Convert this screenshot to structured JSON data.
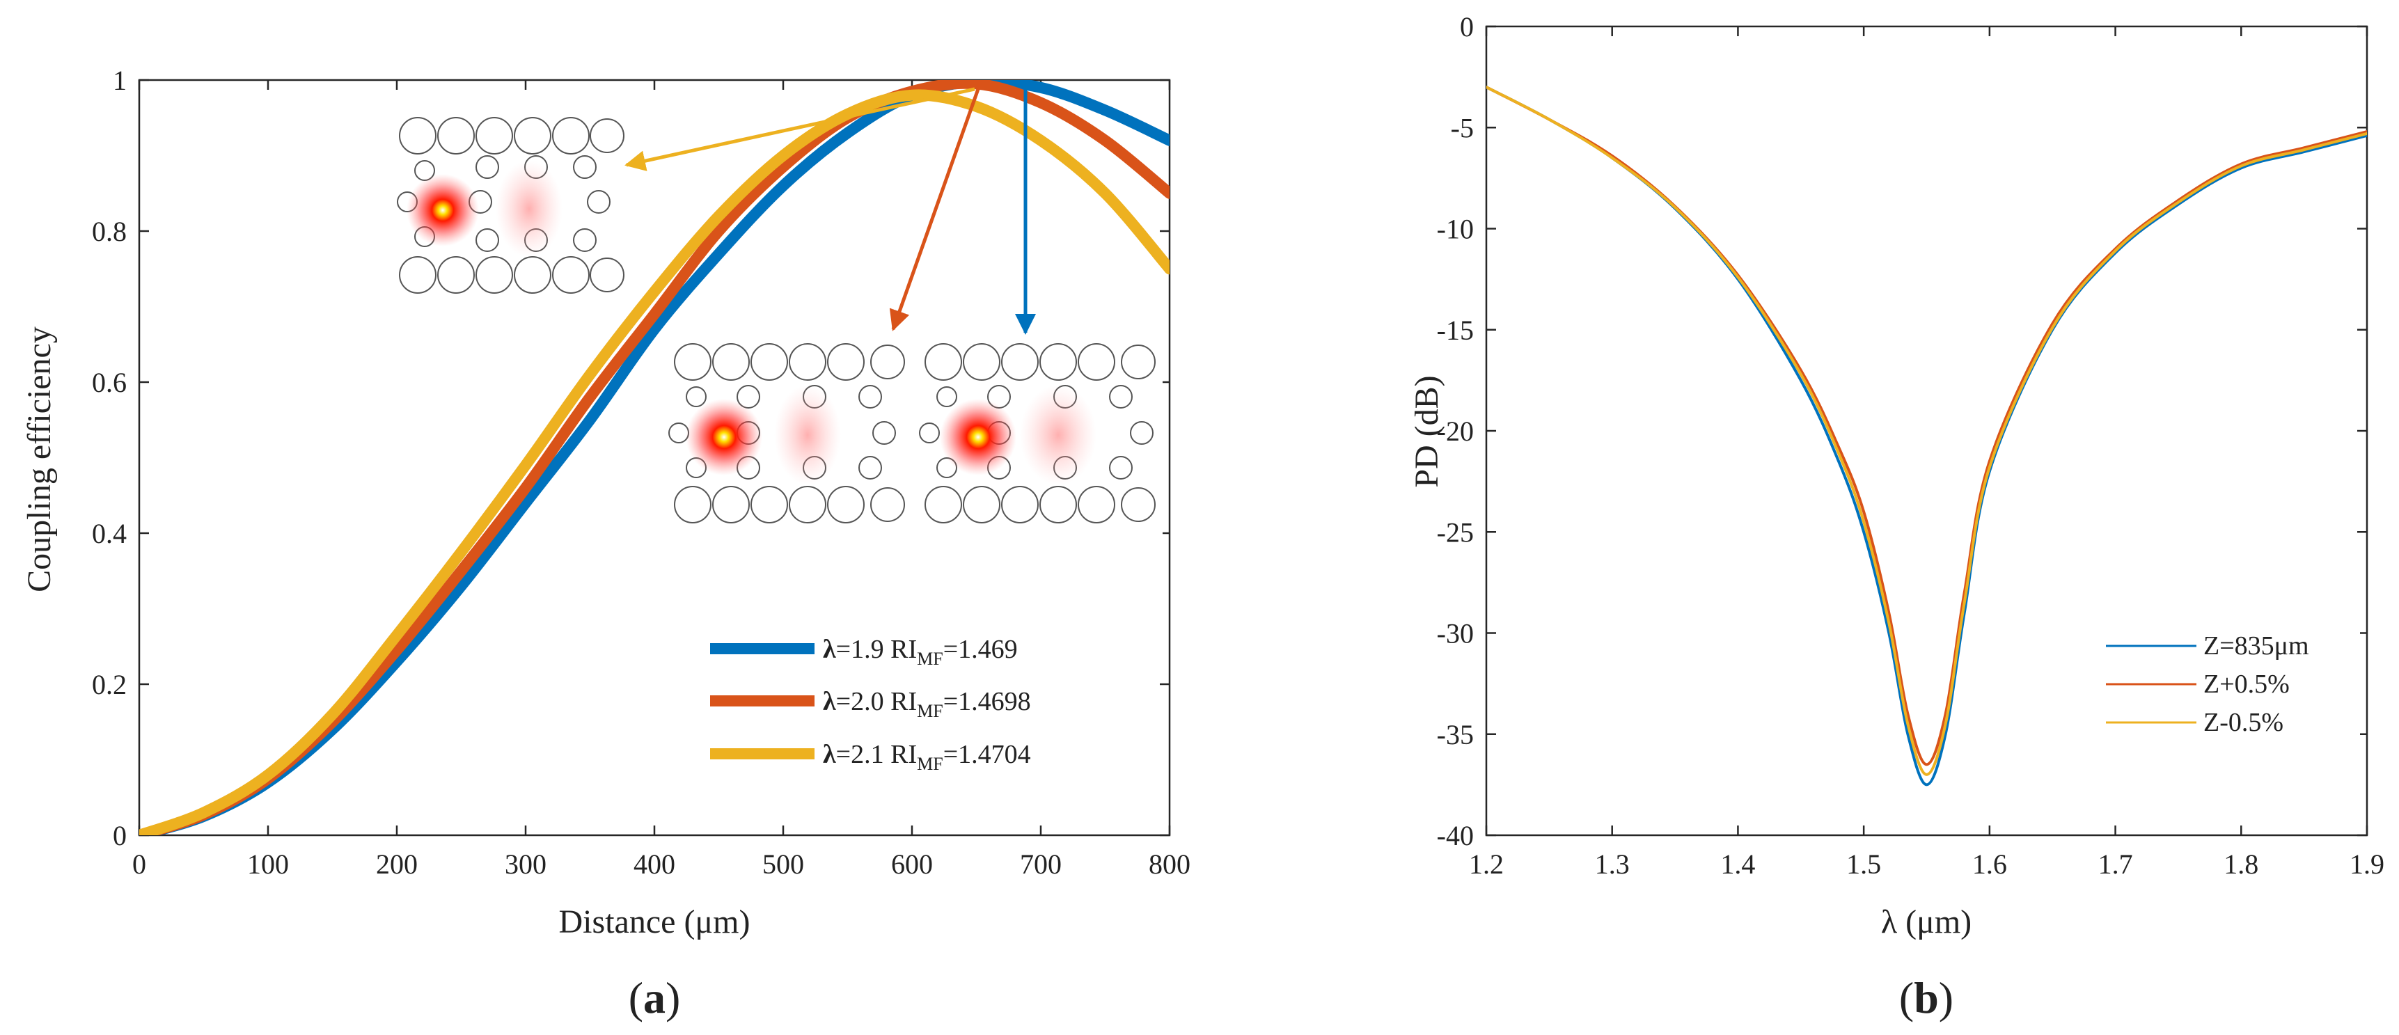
{
  "chart_data": [
    {
      "type": "line",
      "panel_label": "a",
      "xlabel": "Distance (μm)",
      "ylabel": "Coupling efficiency",
      "xlim": [
        0,
        800
      ],
      "ylim": [
        0,
        1
      ],
      "xticks": [
        "0",
        "100",
        "200",
        "300",
        "400",
        "500",
        "600",
        "700",
        "800"
      ],
      "yticks": [
        "0",
        "0.2",
        "0.4",
        "0.6",
        "0.8",
        "1"
      ],
      "grid": false,
      "legend_position": "bottom-right",
      "series": [
        {
          "name": "λ=1.9 RIMF=1.469",
          "name_parts": {
            "lam": "λ",
            "eq": "=1.9 RI",
            "sub": "MF",
            "val": "=1.469"
          },
          "color": "#0072BD",
          "x": [
            0,
            50,
            100,
            150,
            200,
            250,
            300,
            350,
            400,
            450,
            500,
            550,
            600,
            650,
            700,
            750,
            800
          ],
          "y": [
            0,
            0.025,
            0.07,
            0.14,
            0.23,
            0.33,
            0.44,
            0.55,
            0.67,
            0.77,
            0.86,
            0.93,
            0.98,
            0.998,
            0.99,
            0.96,
            0.92
          ]
        },
        {
          "name": "λ=2.0 RIMF=1.4698",
          "name_parts": {
            "lam": "λ",
            "eq": "=2.0 RI",
            "sub": "MF",
            "val": "=1.4698"
          },
          "color": "#D95319",
          "x": [
            0,
            50,
            100,
            150,
            200,
            250,
            300,
            350,
            400,
            450,
            500,
            550,
            600,
            650,
            700,
            750,
            800
          ],
          "y": [
            0,
            0.027,
            0.075,
            0.15,
            0.245,
            0.35,
            0.46,
            0.58,
            0.69,
            0.8,
            0.885,
            0.95,
            0.985,
            0.995,
            0.97,
            0.92,
            0.85
          ]
        },
        {
          "name": "λ=2.1 RIMF=1.4704",
          "name_parts": {
            "lam": "λ",
            "eq": "=2.1 RI",
            "sub": "MF",
            "val": "=1.4704"
          },
          "color": "#EDB120",
          "x": [
            0,
            50,
            100,
            150,
            200,
            250,
            300,
            350,
            400,
            450,
            500,
            550,
            600,
            650,
            700,
            750,
            800
          ],
          "y": [
            0,
            0.03,
            0.08,
            0.16,
            0.265,
            0.375,
            0.49,
            0.61,
            0.72,
            0.82,
            0.9,
            0.955,
            0.98,
            0.965,
            0.92,
            0.85,
            0.75
          ]
        }
      ],
      "arrows": [
        {
          "color": "#EDB120",
          "target": "inset-top"
        },
        {
          "color": "#D95319",
          "target": "inset-bottom-left"
        },
        {
          "color": "#0072BD",
          "target": "inset-bottom-right"
        }
      ]
    },
    {
      "type": "line",
      "panel_label": "b",
      "xlabel": "λ (μm)",
      "ylabel": "PD (dB)",
      "xlim": [
        1.2,
        1.9
      ],
      "ylim": [
        -40,
        0
      ],
      "xticks": [
        "1.2",
        "1.3",
        "1.4",
        "1.5",
        "1.6",
        "1.7",
        "1.8",
        "1.9"
      ],
      "yticks": [
        "0",
        "-5",
        "-10",
        "-15",
        "-20",
        "-25",
        "-30",
        "-35",
        "-40"
      ],
      "grid": false,
      "legend_position": "bottom-right",
      "series": [
        {
          "name": "Z=835μm",
          "color": "#0072BD",
          "x": [
            1.2,
            1.25,
            1.3,
            1.35,
            1.4,
            1.45,
            1.48,
            1.5,
            1.52,
            1.535,
            1.55,
            1.565,
            1.58,
            1.6,
            1.65,
            1.7,
            1.75,
            1.8,
            1.85,
            1.9
          ],
          "y": [
            -3.0,
            -4.6,
            -6.5,
            -9.0,
            -12.5,
            -17.5,
            -21.5,
            -25.0,
            -30.0,
            -35.0,
            -37.5,
            -35.0,
            -29.0,
            -22.0,
            -15.0,
            -11.2,
            -8.8,
            -7.0,
            -6.2,
            -5.4
          ]
        },
        {
          "name": "Z+0.5%",
          "color": "#D95319",
          "x": [
            1.2,
            1.25,
            1.3,
            1.35,
            1.4,
            1.45,
            1.48,
            1.5,
            1.52,
            1.535,
            1.55,
            1.565,
            1.58,
            1.6,
            1.65,
            1.7,
            1.75,
            1.8,
            1.85,
            1.9
          ],
          "y": [
            -3.0,
            -4.6,
            -6.4,
            -8.9,
            -12.3,
            -17.0,
            -20.8,
            -24.0,
            -29.0,
            -34.0,
            -36.5,
            -34.0,
            -28.0,
            -21.5,
            -14.7,
            -11.0,
            -8.6,
            -6.8,
            -6.0,
            -5.2
          ]
        },
        {
          "name": "Z-0.5%",
          "color": "#EDB120",
          "x": [
            1.2,
            1.25,
            1.3,
            1.35,
            1.4,
            1.45,
            1.48,
            1.5,
            1.52,
            1.535,
            1.55,
            1.565,
            1.58,
            1.6,
            1.65,
            1.7,
            1.75,
            1.8,
            1.85,
            1.9
          ],
          "y": [
            -3.0,
            -4.6,
            -6.5,
            -8.95,
            -12.4,
            -17.2,
            -21.1,
            -24.5,
            -29.5,
            -34.5,
            -37.0,
            -34.5,
            -28.5,
            -21.8,
            -14.9,
            -11.1,
            -8.7,
            -6.9,
            -6.1,
            -5.3
          ]
        }
      ]
    }
  ]
}
